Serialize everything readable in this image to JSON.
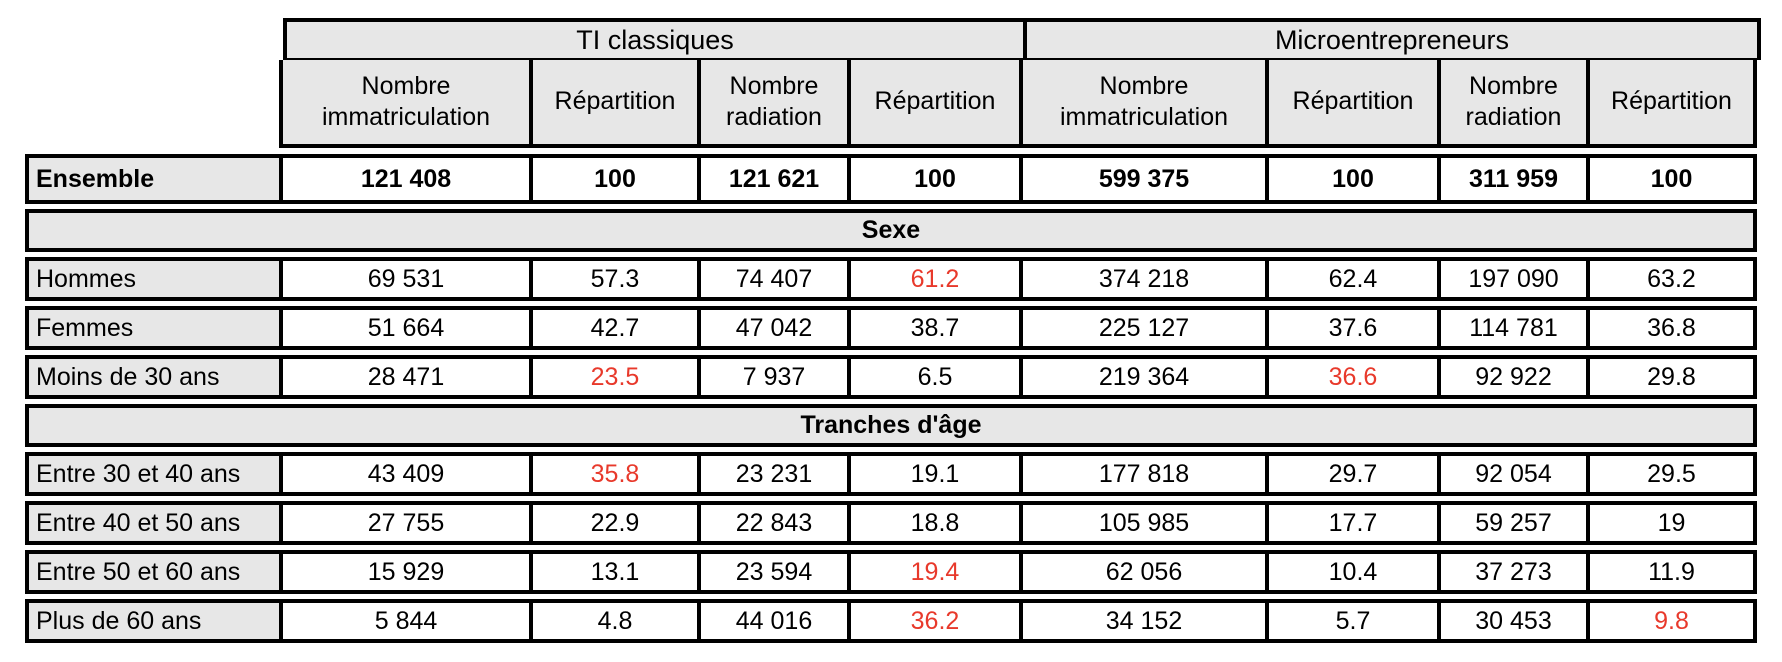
{
  "chart_data": {
    "type": "table",
    "column_groups": [
      "TI classiques",
      "Microentrepreneurs"
    ],
    "columns": [
      "Nombre immatriculation",
      "Répartition",
      "Nombre radiation",
      "Répartition",
      "Nombre immatriculation",
      "Répartition",
      "Nombre radiation",
      "Répartition"
    ],
    "rows": [
      {
        "type": "data",
        "label": "Ensemble",
        "bold": true,
        "values": [
          "121 408",
          "100",
          "121 621",
          "100",
          "599 375",
          "100",
          "311 959",
          "100"
        ],
        "red": []
      },
      {
        "type": "band",
        "band": "Sexe"
      },
      {
        "type": "data",
        "label": "Hommes",
        "values": [
          "69 531",
          "57.3",
          "74 407",
          "61.2",
          "374 218",
          "62.4",
          "197 090",
          "63.2"
        ],
        "red": [
          3
        ]
      },
      {
        "type": "data",
        "label": "Femmes",
        "values": [
          "51 664",
          "42.7",
          "47 042",
          "38.7",
          "225 127",
          "37.6",
          "114 781",
          "36.8"
        ],
        "red": []
      },
      {
        "type": "data",
        "label": "Moins de 30 ans",
        "values": [
          "28 471",
          "23.5",
          "7 937",
          "6.5",
          "219 364",
          "36.6",
          "92 922",
          "29.8"
        ],
        "red": [
          1,
          5
        ]
      },
      {
        "type": "band",
        "band": "Tranches d'âge"
      },
      {
        "type": "data",
        "label": "Entre 30 et 40 ans",
        "values": [
          "43 409",
          "35.8",
          "23 231",
          "19.1",
          "177 818",
          "29.7",
          "92 054",
          "29.5"
        ],
        "red": [
          1
        ]
      },
      {
        "type": "data",
        "label": "Entre 40 et 50 ans",
        "values": [
          "27 755",
          "22.9",
          "22 843",
          "18.8",
          "105 985",
          "17.7",
          "59 257",
          "19"
        ],
        "red": []
      },
      {
        "type": "data",
        "label": "Entre 50 et 60 ans",
        "values": [
          "15 929",
          "13.1",
          "23 594",
          "19.4",
          "62 056",
          "10.4",
          "37 273",
          "11.9"
        ],
        "red": [
          3
        ]
      },
      {
        "type": "data",
        "label": "Plus de 60 ans",
        "values": [
          "5 844",
          "4.8",
          "44 016",
          "36.2",
          "34 152",
          "5.7",
          "30 453",
          "9.8"
        ],
        "red": [
          3,
          7
        ]
      }
    ]
  },
  "colors": {
    "accent_red": "#e8392b",
    "header_gray": "#e7e7e7",
    "border_black": "#000000"
  }
}
